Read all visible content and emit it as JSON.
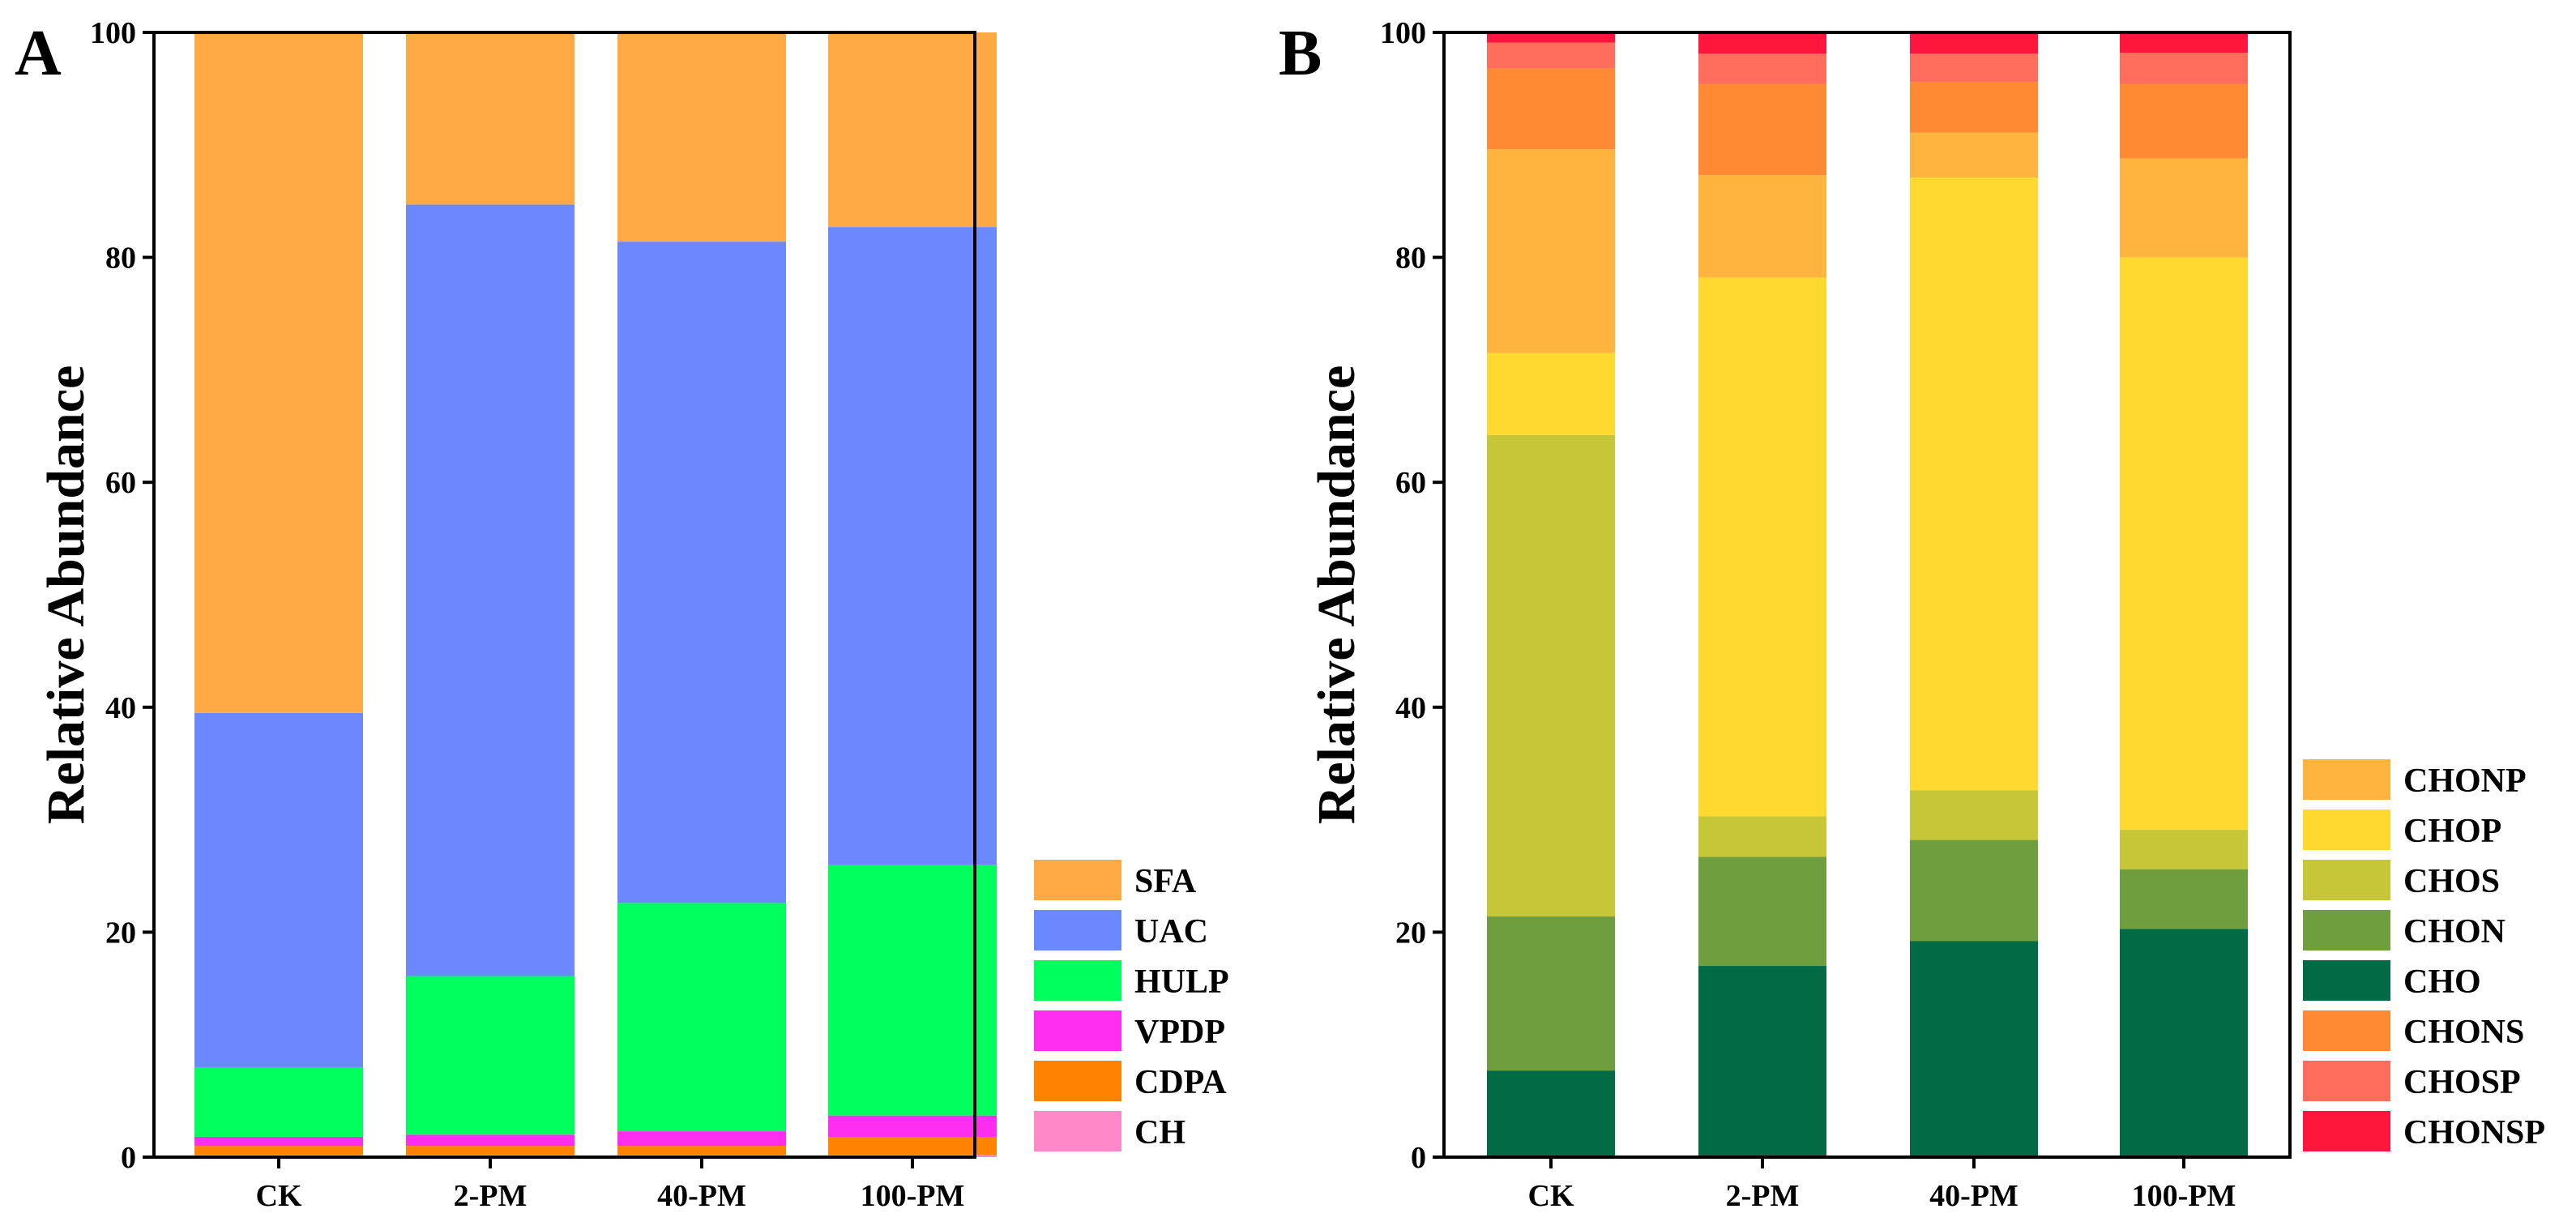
{
  "chart_data": [
    {
      "panel": "A",
      "type": "bar",
      "stacked": true,
      "ylabel": "Relative Abundance",
      "xlabel": "",
      "ylim": [
        0,
        100
      ],
      "yticks": [
        "0",
        "20",
        "40",
        "60",
        "80",
        "100"
      ],
      "categories": [
        "CK",
        "2-PM",
        "40-PM",
        "100-PM"
      ],
      "legend_position": "bottom-right",
      "series": [
        {
          "name": "CH",
          "color": "#FF88C8",
          "values": [
            0.2,
            0.2,
            0.2,
            0.2
          ]
        },
        {
          "name": "CDPA",
          "color": "#FF8200",
          "values": [
            0.8,
            0.8,
            0.8,
            1.6
          ]
        },
        {
          "name": "VPDP",
          "color": "#FF2DF0",
          "values": [
            0.8,
            1.0,
            1.3,
            1.9
          ]
        },
        {
          "name": "HULP",
          "color": "#00FF5C",
          "values": [
            6.2,
            14.1,
            20.3,
            22.3
          ]
        },
        {
          "name": "UAC",
          "color": "#6B88FF",
          "values": [
            31.5,
            68.6,
            58.8,
            56.7
          ]
        },
        {
          "name": "SFA",
          "color": "#FFAA45",
          "values": [
            60.5,
            15.3,
            18.6,
            17.3
          ]
        }
      ]
    },
    {
      "panel": "B",
      "type": "bar",
      "stacked": true,
      "ylabel": "Relative Abundance",
      "xlabel": "",
      "ylim": [
        0,
        100
      ],
      "yticks": [
        "0",
        "20",
        "40",
        "60",
        "80",
        "100"
      ],
      "categories": [
        "CK",
        "2-PM",
        "40-PM",
        "100-PM"
      ],
      "legend_position": "bottom-right",
      "series": [
        {
          "name": "CHO",
          "color": "#006B45",
          "values": [
            7.7,
            17.0,
            19.2,
            20.3
          ]
        },
        {
          "name": "CHON",
          "color": "#6E9E3D",
          "values": [
            13.7,
            9.7,
            9.0,
            5.3
          ]
        },
        {
          "name": "CHOS",
          "color": "#C6C636",
          "values": [
            42.8,
            3.6,
            4.4,
            3.5
          ]
        },
        {
          "name": "CHOP",
          "color": "#FFD930",
          "values": [
            7.3,
            47.9,
            54.5,
            50.9
          ]
        },
        {
          "name": "CHONP",
          "color": "#FFB43D",
          "values": [
            18.1,
            9.1,
            4.0,
            8.8
          ]
        },
        {
          "name": "CHONS",
          "color": "#FF8A33",
          "values": [
            7.2,
            8.1,
            4.5,
            6.6
          ]
        },
        {
          "name": "CHOSP",
          "color": "#FF6E5C",
          "values": [
            2.3,
            2.7,
            2.5,
            2.8
          ]
        },
        {
          "name": "CHONSP",
          "color": "#FF163D",
          "values": [
            1.0,
            2.0,
            2.0,
            1.7
          ]
        }
      ],
      "legend_order": [
        "CHONP",
        "CHOP",
        "CHOS",
        "CHON",
        "CHO",
        "CHONS",
        "CHOSP",
        "CHONSP"
      ]
    }
  ],
  "panelA": {
    "letter": "A",
    "legend_order": [
      "SFA",
      "UAC",
      "HULP",
      "VPDP",
      "CDPA",
      "CH"
    ]
  },
  "panelB": {
    "letter": "B"
  }
}
